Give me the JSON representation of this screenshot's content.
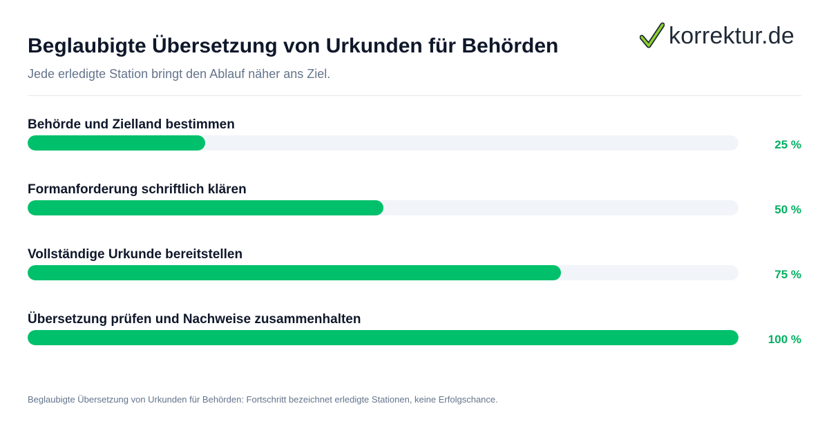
{
  "header": {
    "title": "Beglaubigte Übersetzung von Urkunden für Behörden",
    "subtitle": "Jede erledigte Station bringt den Ablauf näher ans Ziel."
  },
  "logo": {
    "text": "korrektur.de",
    "icon": "checkmark-icon"
  },
  "colors": {
    "accent": "#00c06b",
    "track": "#f1f5f9",
    "value_text": "#00b060"
  },
  "chart_data": {
    "type": "bar",
    "orientation": "horizontal",
    "title": "Beglaubigte Übersetzung von Urkunden für Behörden",
    "categories": [
      "Behörde und Zielland bestimmen",
      "Formanforderung schriftlich klären",
      "Vollständige Urkunde bereitstellen",
      "Übersetzung prüfen und Nachweise zusammenhalten"
    ],
    "values": [
      25,
      50,
      75,
      100
    ],
    "value_labels": [
      "25 %",
      "50 %",
      "75 %",
      "100 %"
    ],
    "xlim": [
      0,
      100
    ],
    "unit": "%",
    "grid": false
  },
  "footnote": "Beglaubigte Übersetzung von Urkunden für Behörden: Fortschritt bezeichnet erledigte Stationen, keine Erfolgschance."
}
